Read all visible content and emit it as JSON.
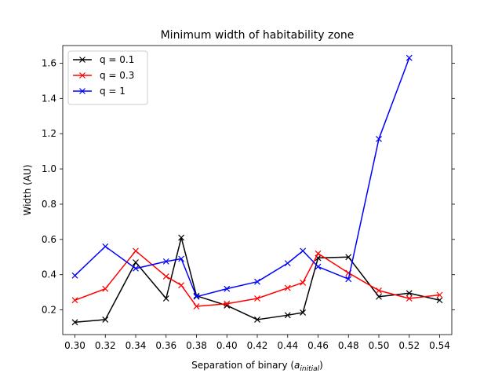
{
  "chart_data": {
    "type": "line",
    "title": "Minimum width of habitability zone",
    "xlabel_main": "Separation of binary (",
    "xlabel_var": "a",
    "xlabel_sub": "initial",
    "xlabel_close": ")",
    "ylabel": "Width (AU)",
    "xlim": [
      0.292,
      0.548
    ],
    "ylim": [
      0.06,
      1.7
    ],
    "xticks": [
      0.3,
      0.32,
      0.34,
      0.36,
      0.38,
      0.4,
      0.42,
      0.44,
      0.46,
      0.48,
      0.5,
      0.52,
      0.54
    ],
    "xtick_labels": [
      "0.30",
      "0.32",
      "0.34",
      "0.36",
      "0.38",
      "0.40",
      "0.42",
      "0.44",
      "0.46",
      "0.48",
      "0.50",
      "0.52",
      "0.54"
    ],
    "yticks": [
      0.2,
      0.4,
      0.6,
      0.8,
      1.0,
      1.2,
      1.4,
      1.6
    ],
    "ytick_labels": [
      "0.2",
      "0.4",
      "0.6",
      "0.8",
      "1.0",
      "1.2",
      "1.4",
      "1.6"
    ],
    "legend_position": "top-left",
    "grid": false,
    "series": [
      {
        "name": "q = 0.1",
        "color": "#000000",
        "marker": "x",
        "x": [
          0.3,
          0.32,
          0.34,
          0.36,
          0.37,
          0.38,
          0.4,
          0.42,
          0.44,
          0.45,
          0.46,
          0.48,
          0.5,
          0.52,
          0.54
        ],
        "y": [
          0.13,
          0.145,
          0.47,
          0.265,
          0.61,
          0.28,
          0.225,
          0.145,
          0.17,
          0.185,
          0.495,
          0.5,
          0.275,
          0.295,
          0.255
        ]
      },
      {
        "name": "q = 0.3",
        "color": "#ff0000",
        "marker": "x",
        "x": [
          0.3,
          0.32,
          0.34,
          0.36,
          0.37,
          0.38,
          0.4,
          0.42,
          0.44,
          0.45,
          0.46,
          0.48,
          0.5,
          0.52,
          0.54
        ],
        "y": [
          0.255,
          0.32,
          0.535,
          0.39,
          0.34,
          0.22,
          0.235,
          0.265,
          0.325,
          0.355,
          0.52,
          0.41,
          0.31,
          0.265,
          0.285
        ]
      },
      {
        "name": "q = 1",
        "color": "#0000ff",
        "marker": "x",
        "x": [
          0.3,
          0.32,
          0.34,
          0.36,
          0.37,
          0.38,
          0.4,
          0.42,
          0.44,
          0.45,
          0.46,
          0.48,
          0.5,
          0.52
        ],
        "y": [
          0.395,
          0.56,
          0.435,
          0.475,
          0.49,
          0.275,
          0.32,
          0.36,
          0.465,
          0.535,
          0.445,
          0.375,
          1.17,
          1.63
        ]
      }
    ]
  }
}
